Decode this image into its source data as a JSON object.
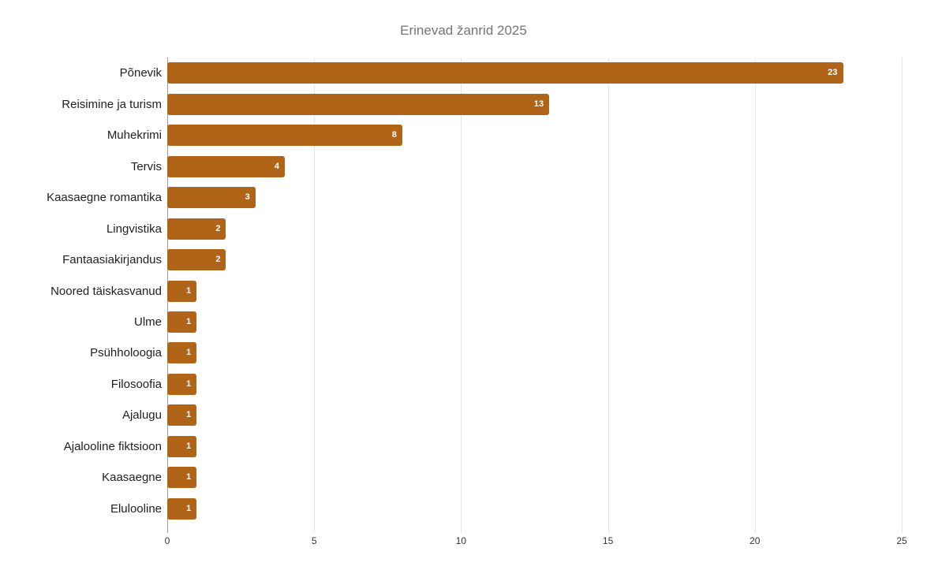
{
  "chart_data": {
    "type": "bar",
    "orientation": "horizontal",
    "title": "Erinevad žanrid 2025",
    "categories": [
      "Põnevik",
      "Reisimine ja turism",
      "Muhekrimi",
      "Tervis",
      "Kaasaegne romantika",
      "Lingvistika",
      "Fantaasiakirjandus",
      "Noored täiskasvanud",
      "Ulme",
      "Psühholoogia",
      "Filosoofia",
      "Ajalugu",
      "Ajalooline fiktsioon",
      "Kaasaegne",
      "Elulooline"
    ],
    "values": [
      23,
      13,
      8,
      4,
      3,
      2,
      2,
      1,
      1,
      1,
      1,
      1,
      1,
      1,
      1
    ],
    "value_labels": [
      "23",
      "13",
      "8",
      "4",
      "3",
      "2",
      "2",
      "1",
      "1",
      "1",
      "1",
      "1",
      "1",
      "1",
      "1"
    ],
    "xlabel": "",
    "ylabel": "",
    "xlim": [
      0,
      25
    ],
    "x_ticks": [
      0,
      5,
      10,
      15,
      20,
      25
    ],
    "x_tick_labels": [
      "0",
      "5",
      "10",
      "15",
      "20",
      "25"
    ],
    "grid": true,
    "legend": "none",
    "colors": {
      "bar": "#AF6418",
      "bar_value_text": "#FFFFFF",
      "title_text": "#757575",
      "category_text": "#1F1F1F",
      "tick_text": "#333333",
      "gridline": "#E6E6E6",
      "axis_line": "#9E9E9E"
    }
  }
}
